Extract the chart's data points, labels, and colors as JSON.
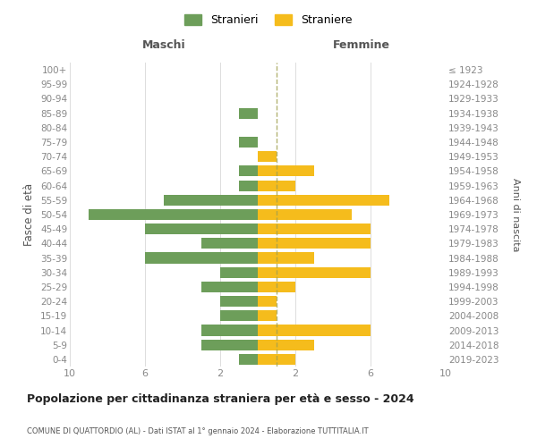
{
  "age_groups": [
    "0-4",
    "5-9",
    "10-14",
    "15-19",
    "20-24",
    "25-29",
    "30-34",
    "35-39",
    "40-44",
    "45-49",
    "50-54",
    "55-59",
    "60-64",
    "65-69",
    "70-74",
    "75-79",
    "80-84",
    "85-89",
    "90-94",
    "95-99",
    "100+"
  ],
  "birth_years": [
    "2019-2023",
    "2014-2018",
    "2009-2013",
    "2004-2008",
    "1999-2003",
    "1994-1998",
    "1989-1993",
    "1984-1988",
    "1979-1983",
    "1974-1978",
    "1969-1973",
    "1964-1968",
    "1959-1963",
    "1954-1958",
    "1949-1953",
    "1944-1948",
    "1939-1943",
    "1934-1938",
    "1929-1933",
    "1924-1928",
    "≤ 1923"
  ],
  "males": [
    1,
    3,
    3,
    2,
    2,
    3,
    2,
    6,
    3,
    6,
    9,
    5,
    1,
    1,
    0,
    1,
    0,
    1,
    0,
    0,
    0
  ],
  "females": [
    2,
    3,
    6,
    1,
    1,
    2,
    6,
    3,
    6,
    6,
    5,
    7,
    2,
    3,
    1,
    0,
    0,
    0,
    0,
    0,
    0
  ],
  "male_color": "#6d9e5a",
  "female_color": "#f5bc1c",
  "male_label": "Stranieri",
  "female_label": "Straniere",
  "title": "Popolazione per cittadinanza straniera per età e sesso - 2024",
  "subtitle": "COMUNE DI QUATTORDIO (AL) - Dati ISTAT al 1° gennaio 2024 - Elaborazione TUTTITALIA.IT",
  "xlabel_left": "Maschi",
  "xlabel_right": "Femmine",
  "ylabel_left": "Fasce di età",
  "ylabel_right": "Anni di nascita",
  "xlim": 10,
  "background_color": "#ffffff",
  "grid_color": "#dddddd",
  "dashed_line_color": "#a0a050"
}
